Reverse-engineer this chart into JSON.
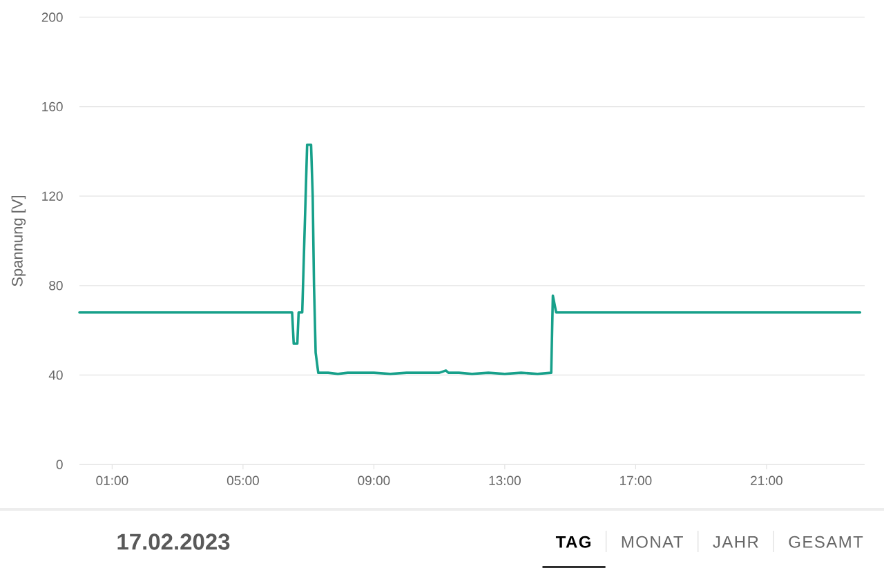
{
  "chart_data": {
    "type": "line",
    "ylabel": "Spannung [V]",
    "annotations": [
      "17.02.2023",
      "TAG",
      "MONAT",
      "JAHR",
      "GESAMT"
    ],
    "x": [
      0,
      6.5,
      6.55,
      6.66,
      6.7,
      6.81,
      6.96,
      7.08,
      7.13,
      7.17,
      7.22,
      7.3,
      7.6,
      7.9,
      8.2,
      8.6,
      9,
      9.5,
      10,
      10.5,
      11,
      11.2,
      11.28,
      11.6,
      12,
      12.5,
      13,
      13.5,
      14,
      14.42,
      14.47,
      14.57,
      23.86
    ],
    "values": [
      68,
      68,
      54,
      54,
      68,
      68,
      143,
      143,
      120,
      80,
      50,
      41,
      41,
      40.5,
      41,
      41,
      41,
      40.5,
      41,
      41,
      41,
      42,
      41,
      41,
      40.5,
      41,
      40.5,
      41,
      40.5,
      41,
      75.5,
      68,
      68
    ],
    "color": "#17a08a",
    "xlim": [
      0,
      24
    ],
    "ylim": [
      0,
      200
    ],
    "xticks": [
      {
        "value": 1,
        "label": "01:00"
      },
      {
        "value": 5,
        "label": "05:00"
      },
      {
        "value": 9,
        "label": "09:00"
      },
      {
        "value": 13,
        "label": "13:00"
      },
      {
        "value": 17,
        "label": "17:00"
      },
      {
        "value": 21,
        "label": "21:00"
      }
    ],
    "yticks": [
      0,
      40,
      80,
      120,
      160,
      200
    ],
    "grid": "y"
  }
}
